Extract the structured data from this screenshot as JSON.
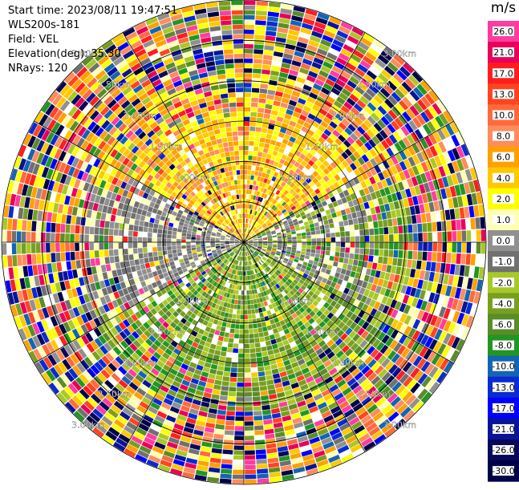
{
  "header": {
    "start_time": "Start time: 2023/08/11 19:47:51",
    "instrument": "WLS200s-181",
    "field": "Field: VEL",
    "elevation": "Elevation(deg): 35.30",
    "nrays": "NRays: 120"
  },
  "chart_data": {
    "type": "heatmap",
    "projection": "polar-ppi",
    "nrays": 120,
    "range_rings_km": [
      0.5,
      1.0,
      1.5,
      2.0,
      2.5,
      3.0
    ],
    "max_range_km": 3.0,
    "ring_labels": [
      {
        "ring": 1.0,
        "label": "1.00km"
      },
      {
        "ring": 1.5,
        "label": "1.50km"
      },
      {
        "ring": 2.0,
        "label": "2.00km"
      },
      {
        "ring": 2.5,
        "label": "2.50km"
      },
      {
        "ring": 3.0,
        "label": "3.00km"
      }
    ],
    "colorbar": {
      "unit": "m/s",
      "ticks": [
        "26.0",
        "21.0",
        "17.0",
        "13.0",
        "10.0",
        "8.0",
        "6.0",
        "4.0",
        "2.0",
        "1.0",
        "0.0",
        "-1.0",
        "-2.0",
        "-4.0",
        "-6.0",
        "-8.0",
        "-10.0",
        "-13.0",
        "-17.0",
        "-21.0",
        "-26.0",
        "-30.0"
      ],
      "colors": [
        "#ff3ca0",
        "#e8005a",
        "#ff1e1e",
        "#ff4520",
        "#ff6a3c",
        "#ff8c5a",
        "#ffa000",
        "#ffc800",
        "#ffff00",
        "#ffffb4",
        "#909090",
        "#707070",
        "#a8c828",
        "#78a01e",
        "#5a8c28",
        "#229622",
        "#1464b4",
        "#0a2ad2",
        "#0000ff",
        "#0a1496",
        "#08085a",
        "#000046"
      ]
    }
  }
}
